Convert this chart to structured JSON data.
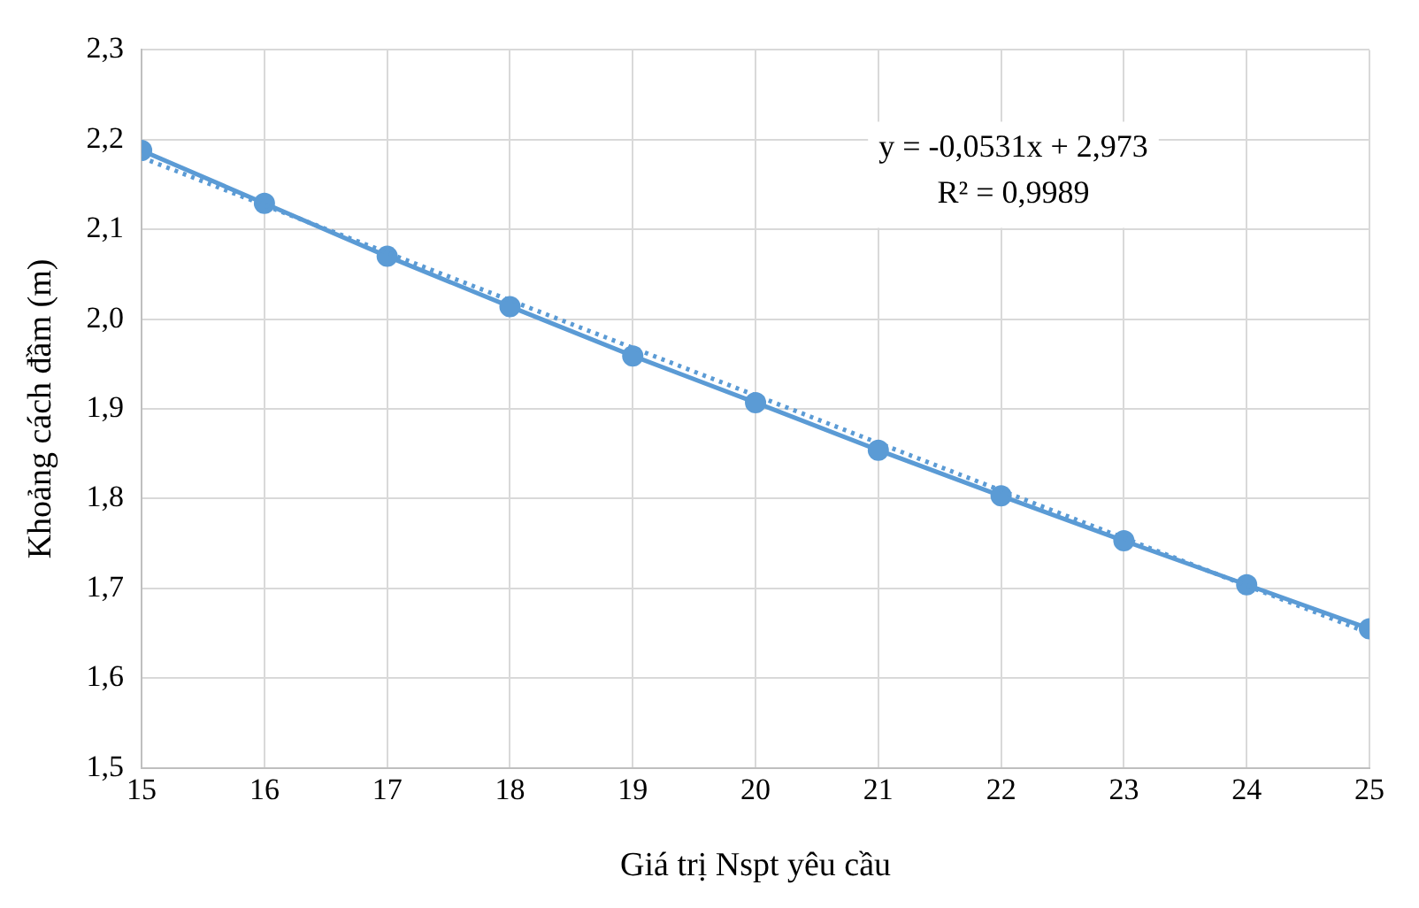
{
  "chart_data": {
    "type": "line",
    "xlabel": "Giá trị Nspt yêu cầu",
    "ylabel": "Khoảng cách đầm (m)",
    "x": [
      15,
      16,
      17,
      18,
      19,
      20,
      21,
      22,
      23,
      24,
      25
    ],
    "series": [
      {
        "color": "#5b9bd5",
        "marker": "circle",
        "line_style": "solid",
        "values": [
          2.188,
          2.129,
          2.07,
          2.014,
          1.959,
          1.907,
          1.854,
          1.803,
          1.753,
          1.704,
          1.655
        ]
      },
      {
        "color": "#5b9bd5",
        "marker": "none",
        "line_style": "dotted",
        "x": [
          15,
          25
        ],
        "values": [
          2.18,
          1.65
        ]
      }
    ],
    "annotations": [
      "y = -0,0531x + 2,973",
      "R² = 0,9989"
    ],
    "xlim": [
      15,
      25
    ],
    "xticks": [
      15,
      16,
      17,
      18,
      19,
      20,
      21,
      22,
      23,
      24,
      25
    ],
    "ylim": [
      1.5,
      2.3
    ],
    "yticks": [
      {
        "value": 1.5,
        "label": "1,5"
      },
      {
        "value": 1.6,
        "label": "1,6"
      },
      {
        "value": 1.7,
        "label": "1,7"
      },
      {
        "value": 1.8,
        "label": "1,8"
      },
      {
        "value": 1.9,
        "label": "1,9"
      },
      {
        "value": 2.0,
        "label": "2,0"
      },
      {
        "value": 2.1,
        "label": "2,1"
      },
      {
        "value": 2.2,
        "label": "2,2"
      },
      {
        "value": 2.3,
        "label": "2,3"
      }
    ],
    "grid": true,
    "legend": false
  }
}
